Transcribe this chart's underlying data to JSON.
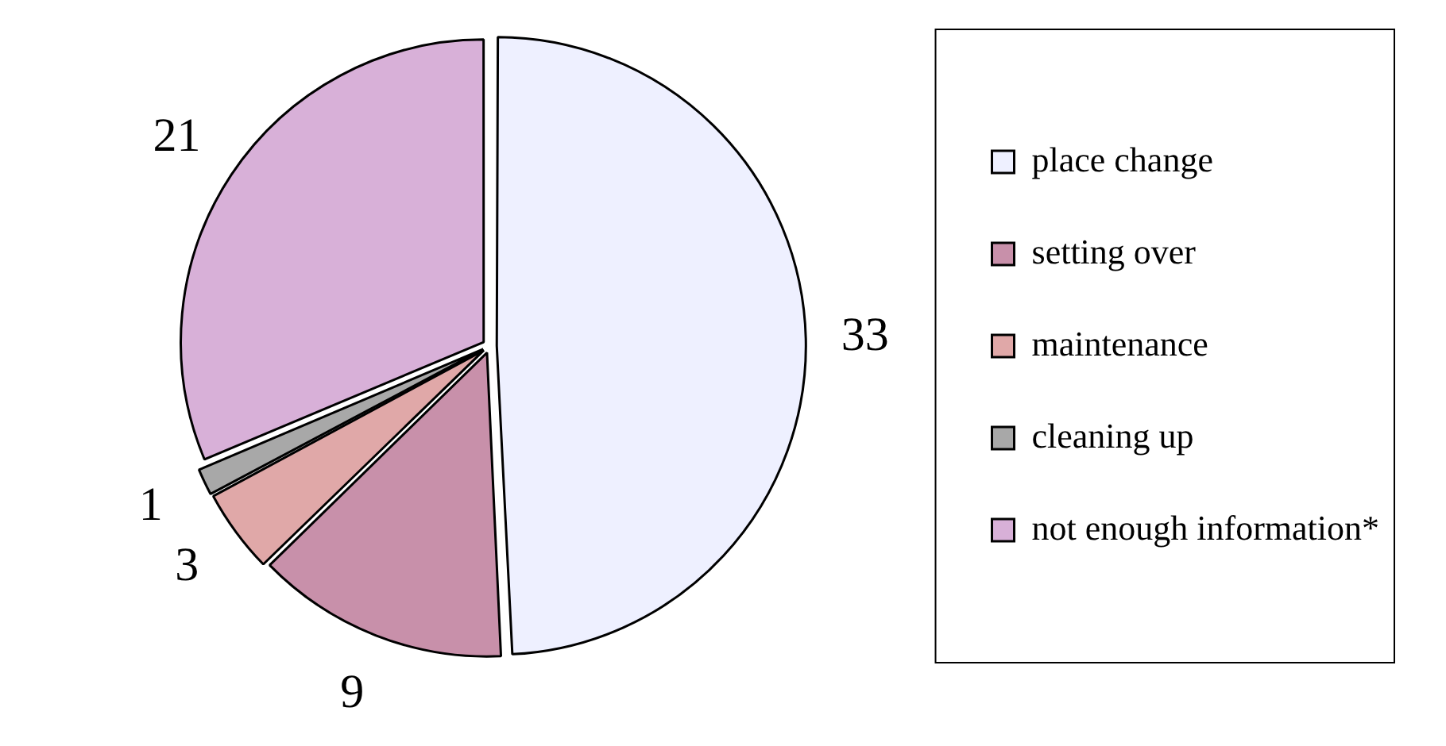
{
  "chart_data": {
    "type": "pie",
    "categories": [
      "place change",
      "setting over",
      "maintenance",
      "cleaning up",
      "not enough information*"
    ],
    "values": [
      33,
      9,
      3,
      1,
      21
    ],
    "colors": [
      "#eef0ff",
      "#c890aa",
      "#e0a8a8",
      "#a8a8a8",
      "#d8b0d8"
    ],
    "data_labels": true,
    "legend": "right"
  }
}
